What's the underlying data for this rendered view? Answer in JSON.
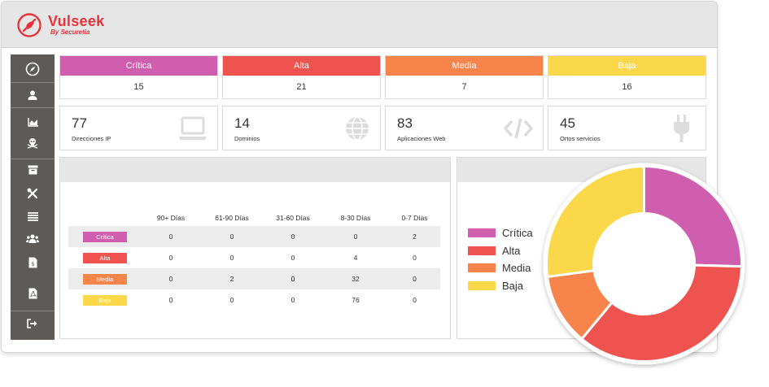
{
  "brand": {
    "name": "Vulseek",
    "subtitle": "By Securetia"
  },
  "colors": {
    "critica": "#cf5fae",
    "alta": "#ef5350",
    "media": "#f7844a",
    "baja": "#fbd84a"
  },
  "sidebar": {
    "items": [
      {
        "icon": "compass-icon"
      },
      {
        "icon": "user-icon"
      },
      {
        "icon": "area-chart-icon"
      },
      {
        "icon": "skull-icon"
      },
      {
        "icon": "archive-icon"
      },
      {
        "icon": "tools-icon"
      },
      {
        "icon": "list-icon"
      },
      {
        "icon": "users-icon"
      },
      {
        "icon": "invoice-icon"
      },
      {
        "icon": "pdf-file-icon"
      },
      {
        "icon": "sign-out-icon"
      }
    ]
  },
  "severity": [
    {
      "label": "Crítica",
      "count": "15",
      "color": "#cf5fae"
    },
    {
      "label": "Alta",
      "count": "21",
      "color": "#ef5350"
    },
    {
      "label": "Media",
      "count": "7",
      "color": "#f7844a"
    },
    {
      "label": "Baja",
      "count": "16",
      "color": "#fbd84a"
    }
  ],
  "stats": [
    {
      "value": "77",
      "label": "Direcciones IP",
      "icon": "laptop-icon"
    },
    {
      "value": "14",
      "label": "Dominios",
      "icon": "globe-icon"
    },
    {
      "value": "83",
      "label": "Aplicaciones Web",
      "icon": "code-icon"
    },
    {
      "value": "45",
      "label": "Ortos servicios",
      "icon": "plug-icon"
    }
  ],
  "aging_table": {
    "columns": [
      "90+ Días",
      "61-90 Días",
      "31-60 Días",
      "8-30 Días",
      "0-7 Días"
    ],
    "rows": [
      {
        "label": "Crítica",
        "color": "#cf5fae",
        "values": [
          "0",
          "0",
          "0",
          "0",
          "2"
        ]
      },
      {
        "label": "Alta",
        "color": "#ef5350",
        "values": [
          "0",
          "0",
          "0",
          "4",
          "0"
        ]
      },
      {
        "label": "Media",
        "color": "#f7844a",
        "values": [
          "0",
          "2",
          "0",
          "32",
          "0"
        ]
      },
      {
        "label": "Baja",
        "color": "#fbd84a",
        "values": [
          "0",
          "0",
          "0",
          "76",
          "0"
        ]
      }
    ]
  },
  "chart_data": {
    "type": "pie",
    "donut": true,
    "categories": [
      "Crítica",
      "Alta",
      "Media",
      "Baja"
    ],
    "values": [
      15,
      21,
      7,
      16
    ],
    "colors": [
      "#cf5fae",
      "#ef5350",
      "#f7844a",
      "#fbd84a"
    ],
    "legend": "left"
  }
}
